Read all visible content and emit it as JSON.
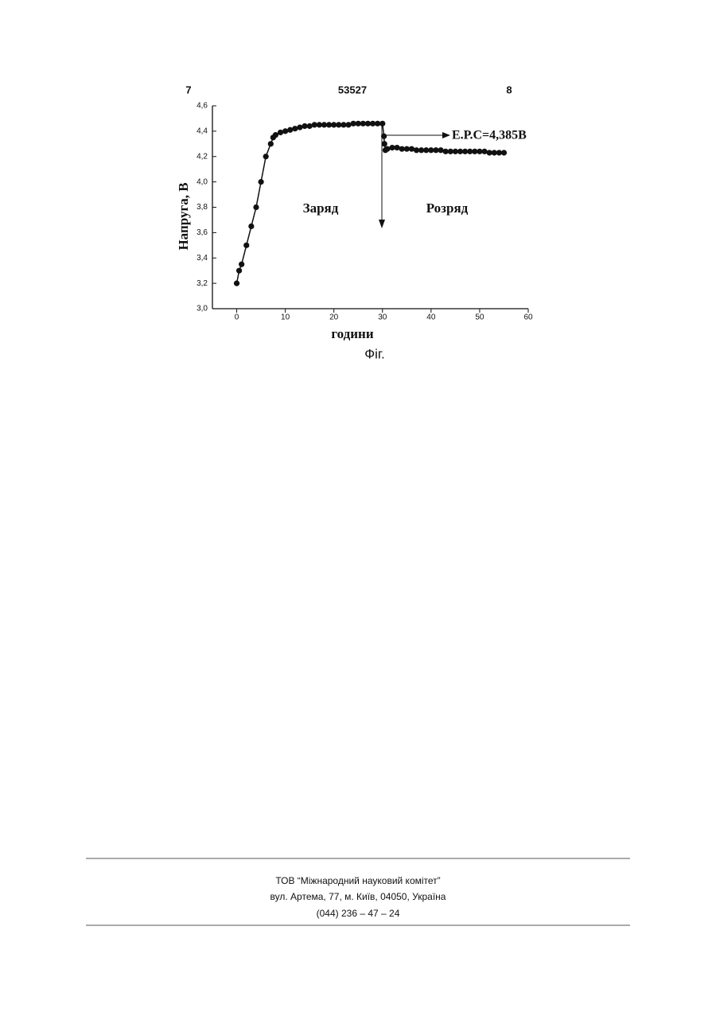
{
  "header": {
    "left": "7",
    "center": "53527",
    "right": "8"
  },
  "chart_data": {
    "type": "line",
    "x": [
      0,
      0.5,
      1,
      2,
      3,
      4,
      5,
      6,
      7,
      7.5,
      8,
      9,
      10,
      11,
      12,
      13,
      14,
      15,
      16,
      17,
      18,
      19,
      20,
      21,
      22,
      23,
      24,
      25,
      26,
      27,
      28,
      29,
      30,
      30.3,
      30.4,
      30.6,
      31,
      32,
      33,
      34,
      35,
      36,
      37,
      38,
      39,
      40,
      41,
      42,
      43,
      44,
      45,
      46,
      47,
      48,
      49,
      50,
      51,
      52,
      53,
      54,
      55
    ],
    "values": [
      3.2,
      3.3,
      3.35,
      3.5,
      3.65,
      3.8,
      4.0,
      4.2,
      4.3,
      4.35,
      4.37,
      4.39,
      4.4,
      4.41,
      4.42,
      4.43,
      4.44,
      4.44,
      4.45,
      4.45,
      4.45,
      4.45,
      4.45,
      4.45,
      4.45,
      4.45,
      4.46,
      4.46,
      4.46,
      4.46,
      4.46,
      4.46,
      4.46,
      4.36,
      4.3,
      4.25,
      4.26,
      4.27,
      4.27,
      4.26,
      4.26,
      4.26,
      4.25,
      4.25,
      4.25,
      4.25,
      4.25,
      4.25,
      4.24,
      4.24,
      4.24,
      4.24,
      4.24,
      4.24,
      4.24,
      4.24,
      4.24,
      4.23,
      4.23,
      4.23,
      4.23
    ],
    "color": "#111111",
    "xlim": [
      -5,
      60
    ],
    "ylim": [
      3,
      4.6
    ],
    "xticks": [
      0,
      10,
      20,
      30,
      40,
      50,
      60
    ],
    "yticks": [
      {
        "value": 3,
        "label": "3,0"
      },
      {
        "value": 3.2,
        "label": "3,2"
      },
      {
        "value": 3.4,
        "label": "3,4"
      },
      {
        "value": 3.6,
        "label": "3,6"
      },
      {
        "value": 3.8,
        "label": "3,8"
      },
      {
        "value": 4,
        "label": "4,0"
      },
      {
        "value": 4.2,
        "label": "4,2"
      },
      {
        "value": 4.4,
        "label": "4,4"
      },
      {
        "value": 4.6,
        "label": "4,6"
      }
    ],
    "xlabel": "години",
    "ylabel": "Напруга, В",
    "annotations": [
      "Заряд",
      "Розряд",
      "Е.Р.С=4,385В"
    ],
    "caption": "Фіг."
  },
  "footer": {
    "lines": [
      "ТОВ “Міжнародний науковий комітет”",
      "вул. Артема, 77, м. Київ, 04050, Україна",
      "(044) 236 – 47 – 24"
    ]
  }
}
